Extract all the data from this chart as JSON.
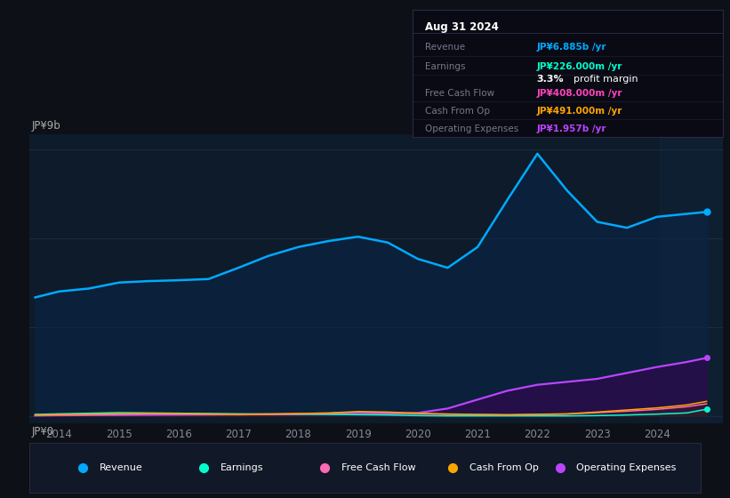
{
  "bg_color": "#0d1117",
  "plot_bg_color": "#0d1b2a",
  "y_label_top": "JP¥9b",
  "y_label_bottom": "JP¥0",
  "x_ticks": [
    2014,
    2015,
    2016,
    2017,
    2018,
    2019,
    2020,
    2021,
    2022,
    2023,
    2024
  ],
  "years": [
    2013.6,
    2014.0,
    2014.5,
    2015.0,
    2015.5,
    2016.0,
    2016.5,
    2017.0,
    2017.5,
    2018.0,
    2018.5,
    2019.0,
    2019.5,
    2020.0,
    2020.5,
    2021.0,
    2021.5,
    2022.0,
    2022.5,
    2023.0,
    2023.5,
    2024.0,
    2024.5,
    2024.83
  ],
  "revenue": [
    4.0,
    4.2,
    4.3,
    4.5,
    4.55,
    4.58,
    4.62,
    5.0,
    5.4,
    5.7,
    5.9,
    6.05,
    5.85,
    5.3,
    5.0,
    5.7,
    7.3,
    8.85,
    7.6,
    6.55,
    6.35,
    6.72,
    6.82,
    6.885
  ],
  "earnings": [
    0.05,
    0.07,
    0.09,
    0.11,
    0.1,
    0.09,
    0.08,
    0.07,
    0.06,
    0.055,
    0.05,
    0.04,
    0.03,
    0.01,
    0.0,
    0.0,
    0.0,
    0.0,
    0.0,
    0.01,
    0.03,
    0.06,
    0.1,
    0.226
  ],
  "free_cash_flow": [
    0.02,
    0.03,
    0.04,
    0.055,
    0.065,
    0.06,
    0.05,
    0.04,
    0.05,
    0.065,
    0.085,
    0.13,
    0.11,
    0.07,
    0.05,
    0.04,
    0.03,
    0.04,
    0.06,
    0.11,
    0.16,
    0.22,
    0.31,
    0.408
  ],
  "cash_from_op": [
    0.03,
    0.05,
    0.06,
    0.075,
    0.085,
    0.075,
    0.065,
    0.055,
    0.065,
    0.08,
    0.1,
    0.145,
    0.13,
    0.09,
    0.065,
    0.05,
    0.04,
    0.055,
    0.07,
    0.13,
    0.2,
    0.27,
    0.37,
    0.491
  ],
  "operating_expenses": [
    0.01,
    0.02,
    0.025,
    0.03,
    0.035,
    0.04,
    0.045,
    0.05,
    0.055,
    0.06,
    0.065,
    0.07,
    0.075,
    0.1,
    0.25,
    0.55,
    0.85,
    1.05,
    1.15,
    1.25,
    1.45,
    1.65,
    1.82,
    1.957
  ],
  "revenue_color": "#00aaff",
  "earnings_color": "#00ffcc",
  "free_cash_flow_color": "#ff69b4",
  "cash_from_op_color": "#ffa500",
  "operating_expenses_color": "#bb44ff",
  "info_box": {
    "date": "Aug 31 2024",
    "revenue_val": "JP¥6.885b",
    "revenue_color": "#00aaff",
    "earnings_val": "JP¥226.000m",
    "earnings_color": "#00ffcc",
    "profit_margin": "3.3%",
    "fcf_val": "JP¥408.000m",
    "fcf_color": "#ff44bb",
    "cash_op_val": "JP¥491.000m",
    "cash_op_color": "#ffa500",
    "op_exp_val": "JP¥1.957b",
    "op_exp_color": "#bb44ff"
  },
  "legend_items": [
    {
      "label": "Revenue",
      "color": "#00aaff"
    },
    {
      "label": "Earnings",
      "color": "#00ffcc"
    },
    {
      "label": "Free Cash Flow",
      "color": "#ff69b4"
    },
    {
      "label": "Cash From Op",
      "color": "#ffa500"
    },
    {
      "label": "Operating Expenses",
      "color": "#bb44ff"
    }
  ]
}
